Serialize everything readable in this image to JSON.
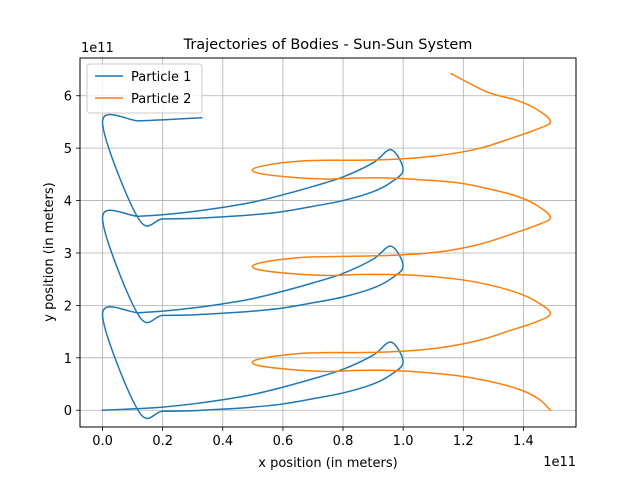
{
  "chart_data": {
    "type": "line",
    "title": "Trajectories of Bodies - Sun-Sun System",
    "xlabel": "x position (in meters)",
    "ylabel": "y position (in meters)",
    "x_offset_label": "1e11",
    "y_offset_label": "1e11",
    "xlim": [
      -0.075,
      1.575
    ],
    "ylim": [
      -0.32,
      6.72
    ],
    "xticks": [
      0.0,
      0.2,
      0.4,
      0.6,
      0.8,
      1.0,
      1.2,
      1.4
    ],
    "xtick_labels": [
      "0.0",
      "0.2",
      "0.4",
      "0.6",
      "0.8",
      "1.0",
      "1.2",
      "1.4"
    ],
    "yticks": [
      0,
      1,
      2,
      3,
      4,
      5,
      6
    ],
    "ytick_labels": [
      "0",
      "1",
      "2",
      "3",
      "4",
      "5",
      "6"
    ],
    "grid": true,
    "legend_position": "top-left",
    "series": [
      {
        "name": "Particle 1",
        "color": "#1f77b4",
        "x": [
          0.0,
          0.12,
          0.2,
          0.3,
          0.4,
          0.5,
          0.6,
          0.7,
          0.8,
          0.9,
          0.96,
          1.0,
          0.96,
          0.9,
          0.8,
          0.7,
          0.6,
          0.5,
          0.4,
          0.3,
          0.2,
          0.12,
          0.0,
          0.12,
          0.2,
          0.3,
          0.4,
          0.5,
          0.6,
          0.7,
          0.8,
          0.9,
          0.96,
          1.0,
          0.96,
          0.9,
          0.8,
          0.7,
          0.6,
          0.5,
          0.4,
          0.3,
          0.2,
          0.12,
          0.0,
          0.12,
          0.2,
          0.3,
          0.4,
          0.5,
          0.6,
          0.7,
          0.8,
          0.9,
          0.96,
          1.0,
          0.96,
          0.9,
          0.8,
          0.7,
          0.6,
          0.5,
          0.4,
          0.3,
          0.2,
          0.12,
          0.0,
          0.12,
          0.2,
          0.33
        ],
        "y": [
          0.0,
          0.03,
          0.06,
          0.12,
          0.2,
          0.3,
          0.44,
          0.6,
          0.78,
          1.05,
          1.3,
          0.92,
          0.68,
          0.5,
          0.33,
          0.22,
          0.12,
          0.06,
          0.02,
          -0.01,
          -0.02,
          -0.02,
          1.83,
          1.86,
          1.89,
          1.95,
          2.03,
          2.13,
          2.27,
          2.43,
          2.61,
          2.88,
          3.13,
          2.75,
          2.51,
          2.33,
          2.16,
          2.05,
          1.95,
          1.89,
          1.85,
          1.82,
          1.81,
          1.81,
          3.67,
          3.7,
          3.73,
          3.79,
          3.87,
          3.97,
          4.11,
          4.27,
          4.45,
          4.72,
          4.97,
          4.59,
          4.35,
          4.17,
          4.0,
          3.89,
          3.79,
          3.73,
          3.69,
          3.66,
          3.65,
          3.65,
          5.5,
          5.52,
          5.54,
          5.58
        ]
      },
      {
        "name": "Particle 2",
        "color": "#ff7f0e",
        "x": [
          1.49,
          1.45,
          1.38,
          1.28,
          1.18,
          1.05,
          0.95,
          0.85,
          0.75,
          0.62,
          0.52,
          0.5,
          0.55,
          0.65,
          0.75,
          0.85,
          0.98,
          1.12,
          1.25,
          1.35,
          1.44,
          1.49,
          1.45,
          1.38,
          1.28,
          1.18,
          1.05,
          0.95,
          0.85,
          0.75,
          0.62,
          0.52,
          0.5,
          0.55,
          0.65,
          0.75,
          0.85,
          0.98,
          1.12,
          1.25,
          1.35,
          1.44,
          1.49,
          1.45,
          1.38,
          1.28,
          1.18,
          1.05,
          0.95,
          0.85,
          0.75,
          0.62,
          0.52,
          0.5,
          0.55,
          0.65,
          0.75,
          0.85,
          0.98,
          1.12,
          1.25,
          1.35,
          1.44,
          1.49,
          1.45,
          1.38,
          1.28,
          1.16
        ],
        "y": [
          0.0,
          0.22,
          0.41,
          0.56,
          0.66,
          0.73,
          0.76,
          0.76,
          0.74,
          0.78,
          0.85,
          0.93,
          1.01,
          1.08,
          1.1,
          1.1,
          1.12,
          1.19,
          1.33,
          1.51,
          1.68,
          1.84,
          2.05,
          2.24,
          2.4,
          2.5,
          2.57,
          2.59,
          2.59,
          2.57,
          2.61,
          2.68,
          2.76,
          2.84,
          2.91,
          2.93,
          2.94,
          2.96,
          3.02,
          3.16,
          3.34,
          3.52,
          3.67,
          3.89,
          4.08,
          4.23,
          4.34,
          4.4,
          4.43,
          4.43,
          4.41,
          4.45,
          4.52,
          4.6,
          4.68,
          4.75,
          4.77,
          4.77,
          4.79,
          4.86,
          4.99,
          5.17,
          5.35,
          5.5,
          5.72,
          5.91,
          6.07,
          6.42
        ]
      }
    ]
  }
}
